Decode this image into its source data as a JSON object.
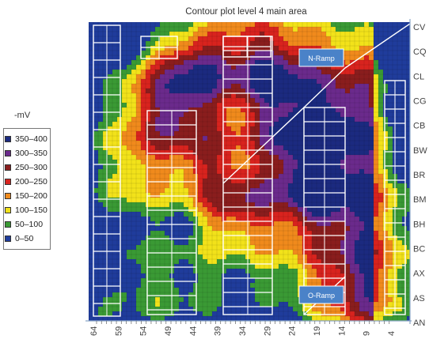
{
  "chart_data": {
    "type": "heatmap",
    "title": "Contour plot level 4 main area",
    "colorbar_title": "-mV",
    "legend": [
      {
        "label": "350–400",
        "color": "#1b2a80"
      },
      {
        "label": "300–350",
        "color": "#6b2a8c"
      },
      {
        "label": "250–300",
        "color": "#8a1d1d"
      },
      {
        "label": "200–250",
        "color": "#d8231e"
      },
      {
        "label": "150–200",
        "color": "#f08a1c"
      },
      {
        "label": "100–150",
        "color": "#f2e21a"
      },
      {
        "label": "50–100",
        "color": "#3a9a34"
      },
      {
        "label": "0–50",
        "color": "#1f3c9c"
      }
    ],
    "x_ticks": [
      "64",
      "59",
      "54",
      "49",
      "44",
      "39",
      "34",
      "29",
      "24",
      "19",
      "14",
      "9",
      "4"
    ],
    "y_ticks": [
      "CV",
      "CQ",
      "CL",
      "CG",
      "CB",
      "BW",
      "BR",
      "BM",
      "BH",
      "BC",
      "AX",
      "AS",
      "AN"
    ],
    "annotations": [
      "N-Ramp",
      "O-Ramp"
    ],
    "legend_position": "left"
  }
}
